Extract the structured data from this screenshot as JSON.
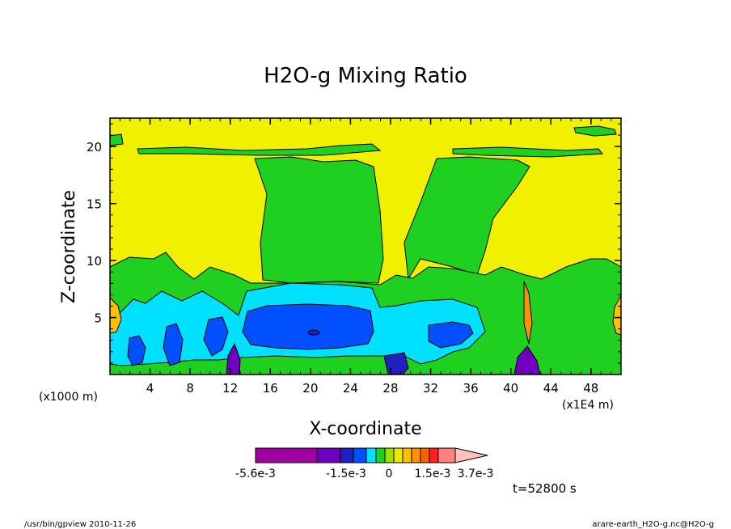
{
  "chart_data": {
    "type": "heatmap",
    "title": "H2O-g Mixing Ratio",
    "xlabel": "X-coordinate",
    "ylabel": "Z-coordinate",
    "x_units_left": "(x1000 m)",
    "x_units_right": "(x1E4 m)",
    "x_ticks": [
      "4",
      "8",
      "12",
      "16",
      "20",
      "24",
      "28",
      "32",
      "36",
      "40",
      "44",
      "48"
    ],
    "x_tick_values": [
      4,
      8,
      12,
      16,
      20,
      24,
      28,
      32,
      36,
      40,
      44,
      48
    ],
    "y_ticks": [
      "5",
      "10",
      "15",
      "20"
    ],
    "y_tick_values": [
      5,
      10,
      15,
      20
    ],
    "xlim": [
      0,
      51
    ],
    "ylim": [
      0,
      22.5
    ],
    "colorbar": {
      "colors": [
        "#a000a0",
        "#7000c0",
        "#2020c0",
        "#0050ff",
        "#00e0ff",
        "#20d020",
        "#a0e000",
        "#e8e800",
        "#ffc000",
        "#ff9000",
        "#ff6000",
        "#ff2020",
        "#ff8080",
        "#ffc0c0"
      ],
      "labels": [
        "-5.6e-3",
        "-1.5e-3",
        "0",
        "1.5e-3",
        "3.7e-3"
      ]
    },
    "time_label": "t=52800 s"
  },
  "footer": {
    "left": "/usr/bin/gpview   2010-11-26",
    "right": "arare-earth_H2O-g.nc@H2O-g"
  }
}
